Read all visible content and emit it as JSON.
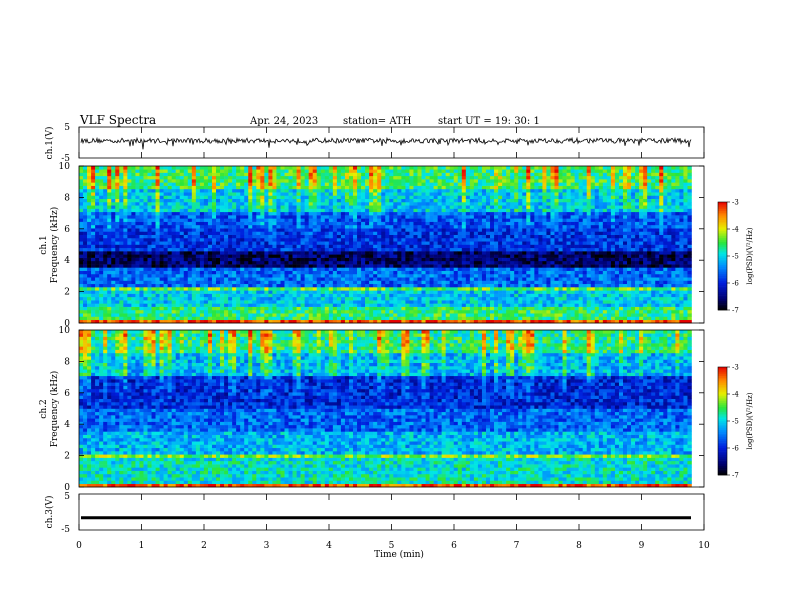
{
  "header": {
    "title": "VLF  Spectra",
    "date": "Apr. 24, 2023",
    "station": "station= ATH",
    "start": "start  UT  =    19: 30: 1"
  },
  "panels": {
    "ch1_wave_label": "ch.1(V)",
    "ch1_spec_label_line1": "ch.1",
    "ch1_spec_label_line2": "Frequency  (kHz)",
    "ch2_spec_label_line1": "ch.2",
    "ch2_spec_label_line2": "Frequency  (kHz)",
    "ch3_wave_label": "ch.3(V)",
    "colorbar_label": "log(PSD)(V²/Hz)"
  },
  "chart_data": [
    {
      "type": "line",
      "name": "ch1-waveform",
      "ylabel": "ch.1(V)",
      "ylim": [
        -5,
        5
      ],
      "yticks": [
        5,
        -5
      ],
      "baseline": 0.6,
      "xlim": [
        0,
        10
      ]
    },
    {
      "type": "heatmap",
      "name": "ch1-spectrogram",
      "ylabel": "Frequency  (kHz)",
      "ylim": [
        0,
        10
      ],
      "yticks": [
        0,
        2,
        4,
        6,
        8,
        10
      ],
      "xlim": [
        0,
        10
      ],
      "data_end_min": 9.8,
      "colorbar": {
        "label": "log(PSD)(V²/Hz)",
        "range": [
          -7,
          -3
        ],
        "ticks": [
          -3,
          -4,
          -5,
          -6,
          -7
        ]
      },
      "bands": [
        {
          "f_min": 0,
          "f_max": 0.3,
          "level": -3.3
        },
        {
          "f_min": 0.3,
          "f_max": 1.0,
          "level": -4.6
        },
        {
          "f_min": 1.0,
          "f_max": 2.0,
          "level": -5.1
        },
        {
          "f_min": 2.0,
          "f_max": 2.3,
          "level": -4.4
        },
        {
          "f_min": 2.3,
          "f_max": 3.6,
          "level": -5.6
        },
        {
          "f_min": 3.6,
          "f_max": 4.6,
          "level": -6.6
        },
        {
          "f_min": 4.6,
          "f_max": 6.0,
          "level": -5.9
        },
        {
          "f_min": 6.0,
          "f_max": 7.0,
          "level": -5.7
        },
        {
          "f_min": 7.0,
          "f_max": 8.5,
          "level": -5.1
        },
        {
          "f_min": 8.5,
          "f_max": 10.0,
          "level": -4.6
        }
      ]
    },
    {
      "type": "heatmap",
      "name": "ch2-spectrogram",
      "ylabel": "Frequency  (kHz)",
      "ylim": [
        0,
        10
      ],
      "yticks": [
        0,
        2,
        4,
        6,
        8,
        10
      ],
      "xlim": [
        0,
        10
      ],
      "data_end_min": 9.8,
      "colorbar": {
        "label": "log(PSD)(V²/Hz)",
        "range": [
          -7,
          -3
        ],
        "ticks": [
          -3,
          -4,
          -5,
          -6,
          -7
        ]
      },
      "bands": [
        {
          "f_min": 0,
          "f_max": 0.3,
          "level": -3.3
        },
        {
          "f_min": 0.3,
          "f_max": 1.8,
          "level": -4.9
        },
        {
          "f_min": 1.8,
          "f_max": 2.1,
          "level": -4.3
        },
        {
          "f_min": 2.1,
          "f_max": 3.5,
          "level": -5.2
        },
        {
          "f_min": 3.5,
          "f_max": 5.0,
          "level": -5.6
        },
        {
          "f_min": 5.0,
          "f_max": 7.0,
          "level": -6.0
        },
        {
          "f_min": 7.0,
          "f_max": 8.5,
          "level": -5.2
        },
        {
          "f_min": 8.5,
          "f_max": 10.0,
          "level": -4.7
        }
      ]
    },
    {
      "type": "line",
      "name": "ch3-waveform",
      "ylabel": "ch.3(V)",
      "ylim": [
        -5,
        5
      ],
      "yticks": [
        5,
        -5
      ],
      "baseline": -1.6,
      "xlim": [
        0,
        10
      ]
    }
  ],
  "xaxis": {
    "label": "Time  (min)",
    "ticks": [
      0,
      1,
      2,
      3,
      4,
      5,
      6,
      7,
      8,
      9,
      10
    ]
  }
}
